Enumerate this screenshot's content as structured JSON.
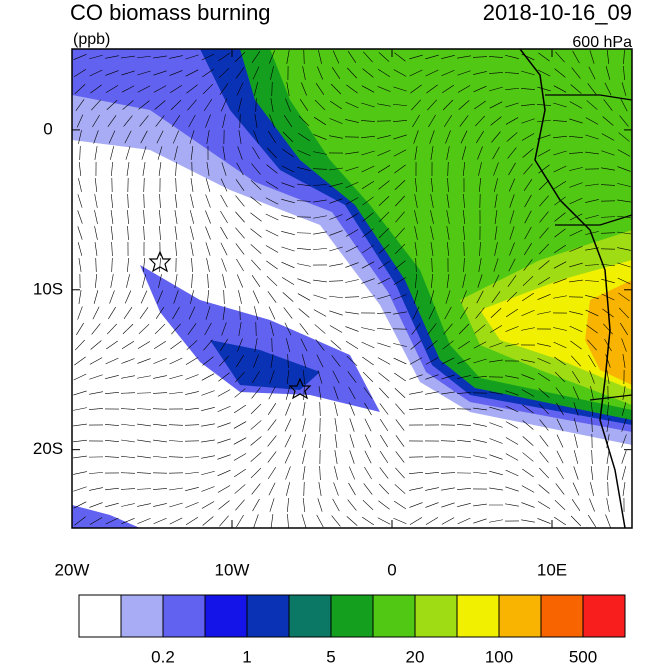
{
  "map": {
    "title": "CO biomass burning",
    "units": "(ppb)",
    "time": "2018-10-16_09",
    "level": "600 hPa",
    "lon_range": [
      -20,
      15
    ],
    "lat_range": [
      5.06,
      -24.9
    ],
    "lon_ticks": [
      {
        "value": -20,
        "label": "20W"
      },
      {
        "value": -10,
        "label": "10W"
      },
      0,
      {
        "value": 10,
        "label": "10E"
      }
    ],
    "lat_ticks": [
      0,
      {
        "value": -10,
        "label": "10S"
      },
      {
        "value": -20,
        "label": "20S"
      }
    ],
    "colorbar": {
      "colors": [
        "#ffffff",
        "#a8acf4",
        "#6262f0",
        "#1414e8",
        "#0a32b4",
        "#0a7864",
        "#14a01e",
        "#50c814",
        "#a0dc14",
        "#f0f000",
        "#f8b400",
        "#f86400",
        "#f81e1e"
      ],
      "labels": [
        0.2,
        1,
        5,
        20,
        100,
        500
      ]
    }
  }
}
